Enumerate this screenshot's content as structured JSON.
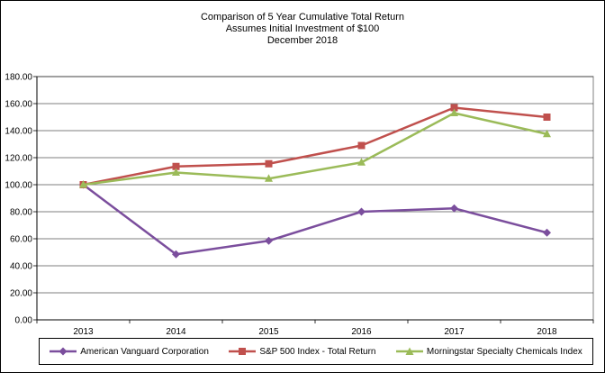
{
  "chart_data": {
    "type": "line",
    "title": [
      "Comparison of 5 Year Cumulative Total Return",
      "Assumes Initial Investment of $100",
      "December 2018"
    ],
    "categories": [
      "2013",
      "2014",
      "2015",
      "2016",
      "2017",
      "2018"
    ],
    "ylim": [
      0,
      180
    ],
    "yticks": [
      "0.00",
      "20.00",
      "40.00",
      "60.00",
      "80.00",
      "100.00",
      "120.00",
      "140.00",
      "160.00",
      "180.00"
    ],
    "ytick_values": [
      0,
      20,
      40,
      60,
      80,
      100,
      120,
      140,
      160,
      180
    ],
    "grid": "horizontal",
    "legend_position": "bottom",
    "series": [
      {
        "name": "American Vanguard Corporation",
        "color": "#7b4e9d",
        "marker": "diamond",
        "values": [
          100,
          48.5,
          58.5,
          80,
          82.5,
          64.5
        ]
      },
      {
        "name": "S&P 500 Index - Total Return",
        "color": "#c0504d",
        "marker": "square",
        "values": [
          100,
          113.5,
          115.5,
          129,
          157,
          150
        ]
      },
      {
        "name": "Morningstar Specialty Chemicals Index",
        "color": "#9bbb59",
        "marker": "triangle",
        "values": [
          100,
          109,
          104.5,
          116.5,
          153,
          137.5
        ]
      }
    ]
  }
}
